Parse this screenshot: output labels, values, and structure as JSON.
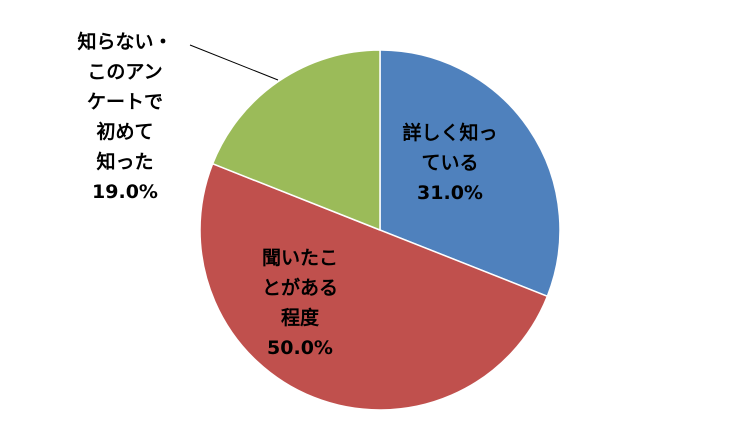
{
  "chart_data": {
    "type": "pie",
    "categories": [
      "詳しく知っ\nている",
      "聞いたこ\nとがある\n程度",
      "知らない・\nこのアン\nケートで\n初めて\n知った"
    ],
    "values": [
      31.0,
      50.0,
      19.0
    ],
    "value_labels": [
      "31.0%",
      "50.0%",
      "19.0%"
    ],
    "colors": [
      "#4f81bd",
      "#c0504d",
      "#9bbb59"
    ]
  }
}
